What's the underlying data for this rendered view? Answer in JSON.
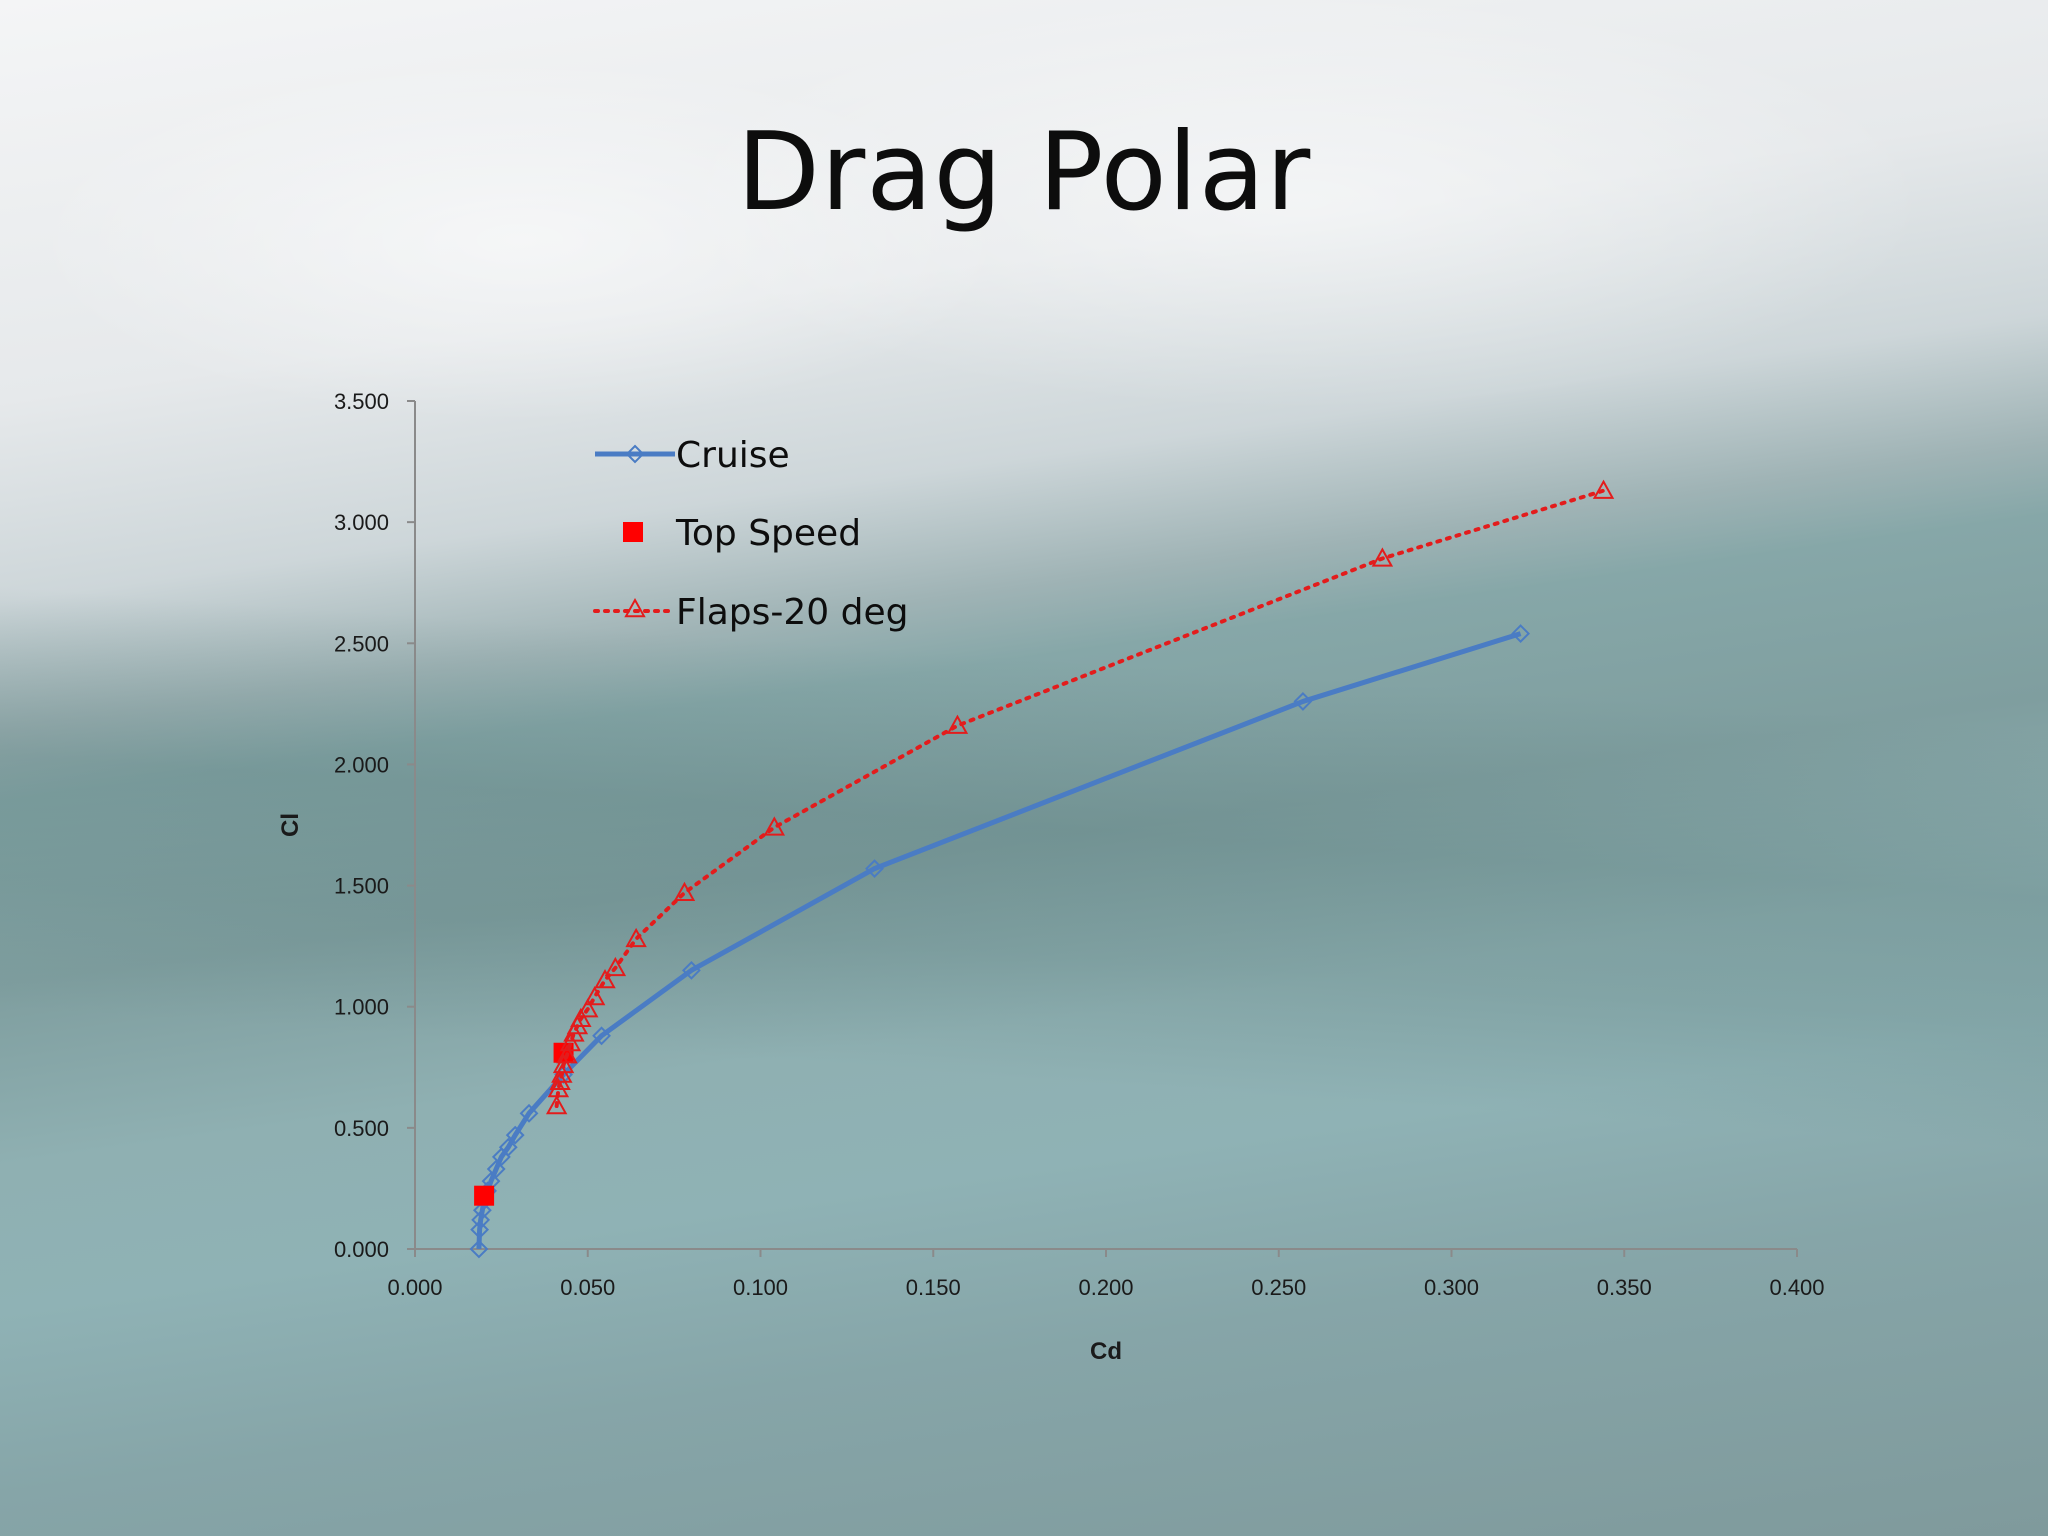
{
  "slide": {
    "title": "Drag Polar"
  },
  "chart_data": {
    "type": "scatter",
    "xlabel": "Cd",
    "ylabel": "Cl",
    "xlim": [
      0,
      0.4
    ],
    "ylim": [
      0,
      3.5
    ],
    "x_ticks": [
      "0.000",
      "0.050",
      "0.100",
      "0.150",
      "0.200",
      "0.250",
      "0.300",
      "0.350",
      "0.400"
    ],
    "y_ticks": [
      "0.000",
      "0.500",
      "1.000",
      "1.500",
      "2.000",
      "2.500",
      "3.000",
      "3.500"
    ],
    "grid": false,
    "legend_placement": "top-left",
    "series": [
      {
        "name": "Cruise",
        "style": "line-with-markers",
        "marker": "diamond",
        "color": "#4a7cc4",
        "points": [
          [
            0.0185,
            0.0
          ],
          [
            0.0187,
            0.08
          ],
          [
            0.019,
            0.12
          ],
          [
            0.0195,
            0.16
          ],
          [
            0.02,
            0.2
          ],
          [
            0.021,
            0.24
          ],
          [
            0.022,
            0.28
          ],
          [
            0.0235,
            0.33
          ],
          [
            0.025,
            0.38
          ],
          [
            0.027,
            0.42
          ],
          [
            0.029,
            0.47
          ],
          [
            0.033,
            0.56
          ],
          [
            0.043,
            0.72
          ],
          [
            0.054,
            0.88
          ],
          [
            0.08,
            1.15
          ],
          [
            0.133,
            1.57
          ],
          [
            0.257,
            2.26
          ],
          [
            0.32,
            2.54
          ]
        ]
      },
      {
        "name": "Top Speed",
        "style": "markers-only",
        "marker": "square",
        "color": "#ff0000",
        "points": [
          [
            0.02,
            0.22
          ],
          [
            0.043,
            0.81
          ]
        ]
      },
      {
        "name": "Flaps-20 deg",
        "style": "dotted-line-with-markers",
        "marker": "triangle",
        "color": "#e31c1c",
        "points": [
          [
            0.041,
            0.59
          ],
          [
            0.0415,
            0.66
          ],
          [
            0.042,
            0.69
          ],
          [
            0.0425,
            0.72
          ],
          [
            0.043,
            0.76
          ],
          [
            0.044,
            0.8
          ],
          [
            0.045,
            0.85
          ],
          [
            0.046,
            0.89
          ],
          [
            0.047,
            0.92
          ],
          [
            0.048,
            0.95
          ],
          [
            0.05,
            0.99
          ],
          [
            0.052,
            1.04
          ],
          [
            0.055,
            1.11
          ],
          [
            0.058,
            1.16
          ],
          [
            0.064,
            1.28
          ],
          [
            0.078,
            1.47
          ],
          [
            0.104,
            1.74
          ],
          [
            0.157,
            2.16
          ],
          [
            0.28,
            2.85
          ],
          [
            0.344,
            3.13
          ]
        ]
      }
    ]
  }
}
